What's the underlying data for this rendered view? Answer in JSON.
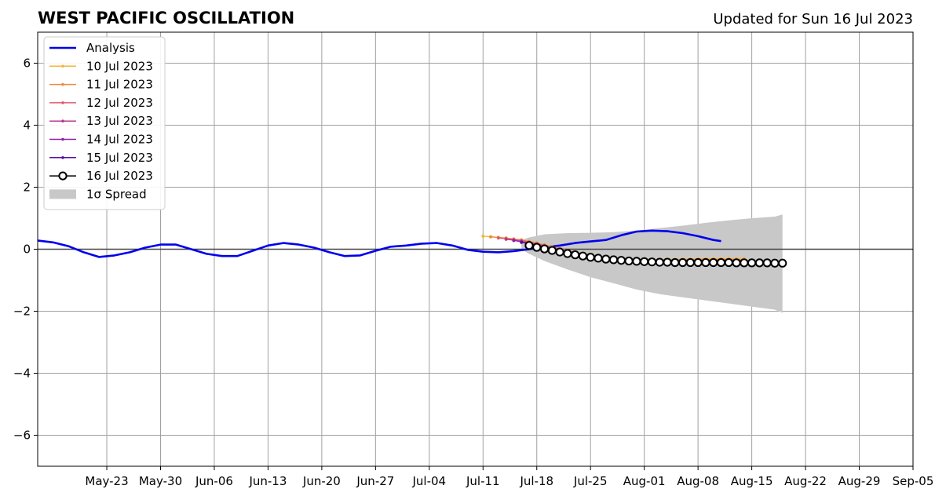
{
  "chart_data": {
    "type": "line",
    "title": "WEST PACIFIC OSCILLATION",
    "subtitle": "Updated for Sun 16 Jul 2023",
    "xlabel": "",
    "ylabel": "",
    "x_range": [
      "2023-05-14",
      "2023-09-05"
    ],
    "ylim": [
      -7,
      7
    ],
    "grid": true,
    "legend_position": "upper-left",
    "x_ticks": [
      {
        "date": "2023-05-23",
        "label": "May-23"
      },
      {
        "date": "2023-05-30",
        "label": "May-30"
      },
      {
        "date": "2023-06-06",
        "label": "Jun-06"
      },
      {
        "date": "2023-06-13",
        "label": "Jun-13"
      },
      {
        "date": "2023-06-20",
        "label": "Jun-20"
      },
      {
        "date": "2023-06-27",
        "label": "Jun-27"
      },
      {
        "date": "2023-07-04",
        "label": "Jul-04"
      },
      {
        "date": "2023-07-11",
        "label": "Jul-11"
      },
      {
        "date": "2023-07-18",
        "label": "Jul-18"
      },
      {
        "date": "2023-07-25",
        "label": "Jul-25"
      },
      {
        "date": "2023-08-01",
        "label": "Aug-01"
      },
      {
        "date": "2023-08-08",
        "label": "Aug-08"
      },
      {
        "date": "2023-08-15",
        "label": "Aug-15"
      },
      {
        "date": "2023-08-22",
        "label": "Aug-22"
      },
      {
        "date": "2023-08-29",
        "label": "Aug-29"
      },
      {
        "date": "2023-09-05",
        "label": "Sep-05"
      }
    ],
    "y_ticks": [
      {
        "value": 6,
        "label": "6"
      },
      {
        "value": 4,
        "label": "4"
      },
      {
        "value": 2,
        "label": "2"
      },
      {
        "value": 0,
        "label": "0"
      },
      {
        "value": -2,
        "label": "−2"
      },
      {
        "value": -4,
        "label": "−4"
      },
      {
        "value": -6,
        "label": "−6"
      }
    ],
    "analysis": {
      "name": "Analysis",
      "color": "#0000ee",
      "points": [
        [
          "2023-05-14",
          0.28
        ],
        [
          "2023-05-16",
          0.22
        ],
        [
          "2023-05-18",
          0.1
        ],
        [
          "2023-05-20",
          -0.1
        ],
        [
          "2023-05-22",
          -0.25
        ],
        [
          "2023-05-24",
          -0.2
        ],
        [
          "2023-05-26",
          -0.1
        ],
        [
          "2023-05-28",
          0.05
        ],
        [
          "2023-05-30",
          0.15
        ],
        [
          "2023-06-01",
          0.15
        ],
        [
          "2023-06-03",
          0.0
        ],
        [
          "2023-06-05",
          -0.15
        ],
        [
          "2023-06-07",
          -0.22
        ],
        [
          "2023-06-09",
          -0.22
        ],
        [
          "2023-06-11",
          -0.05
        ],
        [
          "2023-06-13",
          0.12
        ],
        [
          "2023-06-15",
          0.2
        ],
        [
          "2023-06-17",
          0.15
        ],
        [
          "2023-06-19",
          0.05
        ],
        [
          "2023-06-21",
          -0.1
        ],
        [
          "2023-06-23",
          -0.22
        ],
        [
          "2023-06-25",
          -0.2
        ],
        [
          "2023-06-27",
          -0.05
        ],
        [
          "2023-06-29",
          0.08
        ],
        [
          "2023-07-01",
          0.12
        ],
        [
          "2023-07-03",
          0.18
        ],
        [
          "2023-07-05",
          0.2
        ],
        [
          "2023-07-07",
          0.12
        ],
        [
          "2023-07-09",
          -0.02
        ],
        [
          "2023-07-11",
          -0.08
        ],
        [
          "2023-07-13",
          -0.1
        ],
        [
          "2023-07-15",
          -0.06
        ],
        [
          "2023-07-17",
          0.0
        ],
        [
          "2023-07-19",
          0.06
        ],
        [
          "2023-07-21",
          0.12
        ],
        [
          "2023-07-23",
          0.2
        ],
        [
          "2023-07-25",
          0.25
        ],
        [
          "2023-07-27",
          0.3
        ],
        [
          "2023-07-29",
          0.45
        ],
        [
          "2023-07-31",
          0.57
        ],
        [
          "2023-08-02",
          0.6
        ],
        [
          "2023-08-04",
          0.58
        ],
        [
          "2023-08-06",
          0.52
        ],
        [
          "2023-08-08",
          0.42
        ],
        [
          "2023-08-10",
          0.3
        ],
        [
          "2023-08-11",
          0.26
        ]
      ]
    },
    "forecasts": [
      {
        "name": "10 Jul 2023",
        "color": "#f5b43c",
        "start": "2023-07-11",
        "values": [
          0.42,
          0.4,
          0.38,
          0.36,
          0.33,
          0.3,
          0.26,
          0.2,
          0.14,
          0.08,
          0.02,
          -0.04,
          -0.1,
          -0.14,
          -0.18,
          -0.22,
          -0.25,
          -0.27,
          -0.29,
          -0.31,
          -0.32,
          -0.33,
          -0.33,
          -0.33,
          -0.33,
          -0.32,
          -0.32,
          -0.32,
          -0.31,
          -0.31,
          -0.3,
          -0.3,
          -0.3,
          -0.3,
          -0.3
        ]
      },
      {
        "name": "11 Jul 2023",
        "color": "#f08a3c",
        "start": "2023-07-12",
        "values": [
          0.4,
          0.38,
          0.36,
          0.33,
          0.3,
          0.25,
          0.2,
          0.14,
          0.08,
          0.02,
          -0.04,
          -0.1,
          -0.15,
          -0.19,
          -0.23,
          -0.26,
          -0.28,
          -0.3,
          -0.32,
          -0.33,
          -0.34,
          -0.34,
          -0.34,
          -0.34,
          -0.34,
          -0.34,
          -0.33,
          -0.33,
          -0.33,
          -0.33,
          -0.33,
          -0.33,
          -0.33,
          -0.33
        ]
      },
      {
        "name": "12 Jul 2023",
        "color": "#dd5a6e",
        "start": "2023-07-13",
        "values": [
          0.36,
          0.34,
          0.31,
          0.28,
          0.23,
          0.18,
          0.12,
          0.06,
          0.0,
          -0.06,
          -0.11,
          -0.16,
          -0.2,
          -0.24,
          -0.27,
          -0.29,
          -0.31,
          -0.33,
          -0.34,
          -0.35,
          -0.35,
          -0.36,
          -0.36,
          -0.36,
          -0.36,
          -0.36,
          -0.36,
          -0.36,
          -0.36,
          -0.36,
          -0.36,
          -0.36,
          -0.36
        ]
      },
      {
        "name": "13 Jul 2023",
        "color": "#b8388e",
        "start": "2023-07-14",
        "values": [
          0.32,
          0.29,
          0.25,
          0.2,
          0.15,
          0.09,
          0.03,
          -0.03,
          -0.09,
          -0.14,
          -0.19,
          -0.23,
          -0.26,
          -0.29,
          -0.31,
          -0.33,
          -0.35,
          -0.36,
          -0.37,
          -0.37,
          -0.38,
          -0.38,
          -0.38,
          -0.38,
          -0.38,
          -0.38,
          -0.38,
          -0.38,
          -0.38,
          -0.38,
          -0.38,
          -0.38
        ]
      },
      {
        "name": "14 Jul 2023",
        "color": "#8c1fa8",
        "start": "2023-07-15",
        "values": [
          0.28,
          0.24,
          0.19,
          0.13,
          0.07,
          0.01,
          -0.05,
          -0.11,
          -0.16,
          -0.21,
          -0.25,
          -0.28,
          -0.31,
          -0.33,
          -0.35,
          -0.36,
          -0.37,
          -0.38,
          -0.39,
          -0.39,
          -0.4,
          -0.4,
          -0.4,
          -0.4,
          -0.4,
          -0.4,
          -0.4,
          -0.4,
          -0.4,
          -0.4,
          -0.4
        ]
      },
      {
        "name": "15 Jul 2023",
        "color": "#5a0fa0",
        "start": "2023-07-16",
        "values": [
          0.22,
          0.18,
          0.12,
          0.06,
          0.0,
          -0.06,
          -0.12,
          -0.17,
          -0.22,
          -0.26,
          -0.29,
          -0.32,
          -0.34,
          -0.36,
          -0.37,
          -0.38,
          -0.39,
          -0.4,
          -0.4,
          -0.41,
          -0.41,
          -0.41,
          -0.41,
          -0.41,
          -0.41,
          -0.41,
          -0.41,
          -0.41,
          -0.41,
          -0.41
        ]
      },
      {
        "name": "16 Jul 2023",
        "color": "#000000",
        "start": "2023-07-17",
        "values": [
          0.12,
          0.06,
          0.01,
          -0.04,
          -0.09,
          -0.14,
          -0.18,
          -0.22,
          -0.26,
          -0.29,
          -0.32,
          -0.34,
          -0.36,
          -0.38,
          -0.39,
          -0.4,
          -0.41,
          -0.42,
          -0.42,
          -0.43,
          -0.43,
          -0.43,
          -0.43,
          -0.43,
          -0.43,
          -0.43,
          -0.43,
          -0.44,
          -0.44,
          -0.44,
          -0.44,
          -0.44,
          -0.45,
          -0.45
        ]
      }
    ],
    "spread": {
      "name": "1σ Spread",
      "color": "#c8c8c8",
      "points": [
        [
          "2023-07-16",
          0.3,
          0.0
        ],
        [
          "2023-07-17",
          0.38,
          -0.15
        ],
        [
          "2023-07-19",
          0.48,
          -0.38
        ],
        [
          "2023-07-22",
          0.52,
          -0.65
        ],
        [
          "2023-07-25",
          0.53,
          -0.9
        ],
        [
          "2023-07-28",
          0.55,
          -1.1
        ],
        [
          "2023-07-31",
          0.6,
          -1.3
        ],
        [
          "2023-08-03",
          0.68,
          -1.45
        ],
        [
          "2023-08-06",
          0.76,
          -1.55
        ],
        [
          "2023-08-09",
          0.85,
          -1.65
        ],
        [
          "2023-08-12",
          0.93,
          -1.75
        ],
        [
          "2023-08-15",
          1.0,
          -1.85
        ],
        [
          "2023-08-18",
          1.05,
          -1.95
        ],
        [
          "2023-08-19",
          1.12,
          -2.05
        ]
      ]
    }
  }
}
